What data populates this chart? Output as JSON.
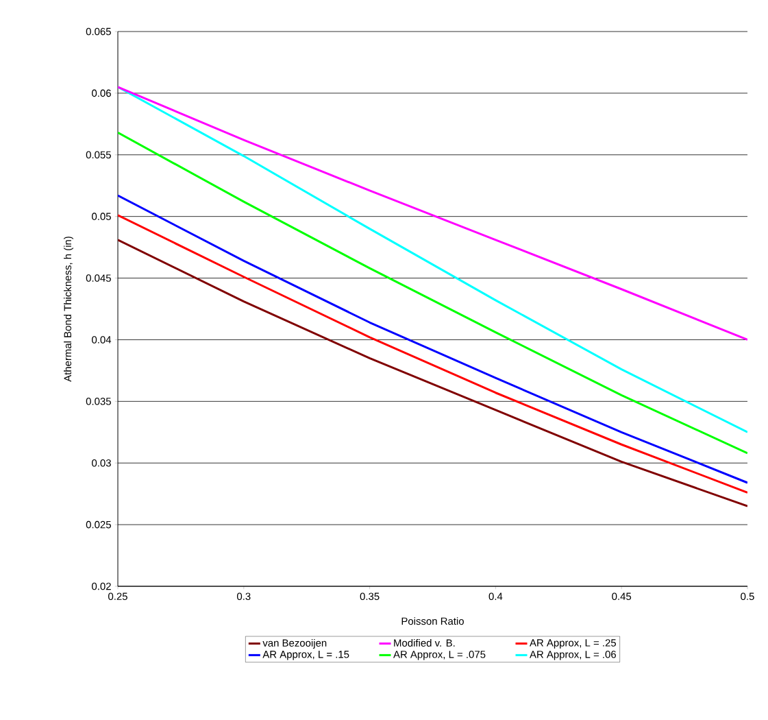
{
  "chart_data": {
    "type": "line",
    "xlabel": "Poisson Ratio",
    "ylabel": "Athermal Bond Thickness, h (in)",
    "x": [
      0.25,
      0.3,
      0.35,
      0.4,
      0.45,
      0.5
    ],
    "series": [
      {
        "name": "van Bezooijen",
        "color": "#800000",
        "values": [
          0.0481,
          0.0431,
          0.0385,
          0.0343,
          0.0301,
          0.0265
        ]
      },
      {
        "name": "Modified v. B.",
        "color": "#ff00ff",
        "values": [
          0.0605,
          0.0562,
          0.0521,
          0.0481,
          0.0441,
          0.04
        ]
      },
      {
        "name": "AR Approx, L = .25",
        "color": "#ff0000",
        "values": [
          0.0501,
          0.0451,
          0.0402,
          0.0357,
          0.0315,
          0.0276
        ]
      },
      {
        "name": "AR Approx, L = .15",
        "color": "#0000ff",
        "values": [
          0.0517,
          0.0464,
          0.0414,
          0.0369,
          0.0325,
          0.0284
        ]
      },
      {
        "name": "AR Approx, L = .075",
        "color": "#00ff00",
        "values": [
          0.0568,
          0.0512,
          0.0458,
          0.0406,
          0.0355,
          0.0308
        ]
      },
      {
        "name": "AR Approx, L = .06",
        "color": "#00ffff",
        "values": [
          0.0605,
          0.0549,
          0.049,
          0.0432,
          0.0376,
          0.0325
        ]
      }
    ],
    "xlim": [
      0.25,
      0.5
    ],
    "xticks": [
      0.25,
      0.3,
      0.35,
      0.4,
      0.45,
      0.5
    ],
    "ylim": [
      0.02,
      0.065
    ],
    "yticks": [
      0.02,
      0.025,
      0.03,
      0.035,
      0.04,
      0.045,
      0.05,
      0.055,
      0.06,
      0.065
    ],
    "grid": "y",
    "legend": "bottom",
    "marker": "none",
    "line_style": "solid"
  }
}
